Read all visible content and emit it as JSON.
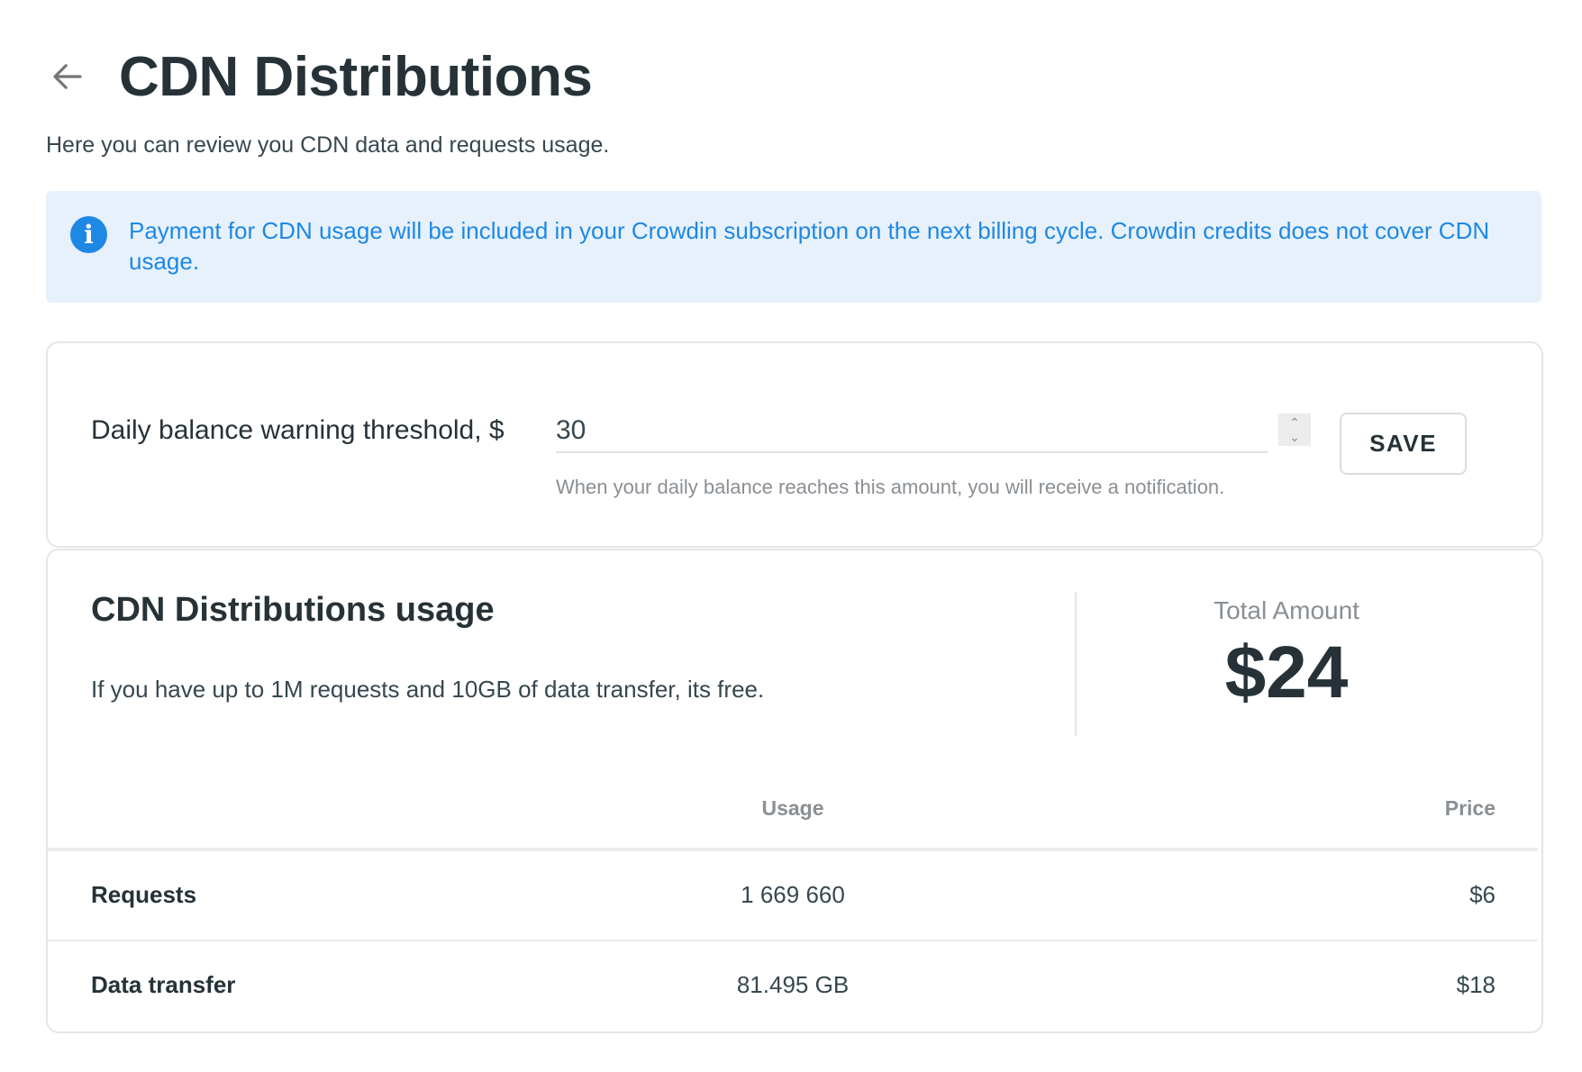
{
  "header": {
    "title": "CDN Distributions",
    "subtitle": "Here you can review you CDN data and requests usage.",
    "back_icon": "arrow-left-icon"
  },
  "banner": {
    "icon": "info-icon",
    "icon_glyph": "i",
    "text": "Payment for CDN usage will be included in your Crowdin subscription on the next billing cycle. Crowdin credits does not cover CDN usage.",
    "color": "#1e88e5",
    "background": "#e7f1fc"
  },
  "threshold": {
    "label": "Daily balance warning threshold, $",
    "value": "30",
    "help": "When your daily balance reaches this amount, you will receive a notification.",
    "save_label": "SAVE"
  },
  "usage": {
    "title": "CDN Distributions usage",
    "description": "If you have up to 1M requests and 10GB of data transfer, its free.",
    "total_label": "Total Amount",
    "total_value": "$24",
    "table": {
      "headers": {
        "usage": "Usage",
        "price": "Price"
      },
      "rows": [
        {
          "label": "Requests",
          "usage": "1 669 660",
          "price": "$6"
        },
        {
          "label": "Data transfer",
          "usage": "81.495 GB",
          "price": "$18"
        }
      ]
    }
  }
}
